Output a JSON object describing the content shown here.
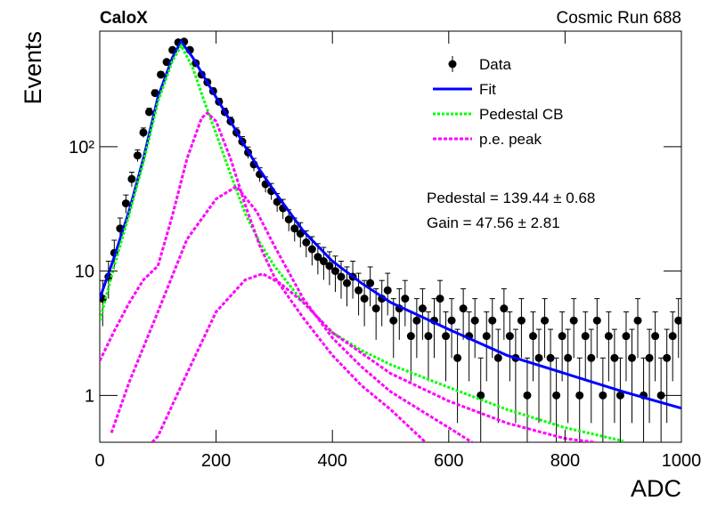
{
  "chart_data": {
    "type": "scatter",
    "title": "CaloX",
    "subtitle": "Cosmic Run 688",
    "x_label": "ADC",
    "y_label": "Events",
    "annotations": [
      "Pedestal = 139.44 ± 0.68",
      "Gain = 47.56 ± 2.81"
    ],
    "xlim": [
      0,
      1000
    ],
    "xticks": [
      0,
      200,
      400,
      600,
      800,
      1000
    ],
    "ylim": [
      0.42,
      850
    ],
    "yticks": [
      1,
      10,
      {
        "value": 100,
        "label": "10²"
      }
    ],
    "log_y": true,
    "grid": false,
    "legend": "upper right",
    "series": [
      {
        "name": "Data",
        "kind": "points",
        "color": "#000000",
        "x": [
          5,
          15,
          25,
          35,
          45,
          55,
          65,
          75,
          85,
          95,
          105,
          115,
          125,
          135,
          145,
          155,
          165,
          175,
          185,
          195,
          205,
          215,
          225,
          235,
          245,
          255,
          265,
          275,
          285,
          295,
          305,
          315,
          325,
          335,
          345,
          355,
          365,
          375,
          385,
          395,
          405,
          415,
          425,
          435,
          445,
          455,
          465,
          475,
          485,
          495,
          505,
          515,
          525,
          535,
          545,
          555,
          565,
          575,
          585,
          595,
          605,
          615,
          625,
          635,
          645,
          655,
          665,
          675,
          685,
          695,
          705,
          715,
          725,
          735,
          745,
          755,
          765,
          775,
          785,
          795,
          805,
          815,
          825,
          835,
          845,
          855,
          865,
          875,
          885,
          895,
          905,
          915,
          925,
          935,
          945,
          955,
          965,
          975,
          985,
          995
        ],
        "values": [
          6,
          9,
          14,
          22,
          35,
          55,
          85,
          130,
          190,
          270,
          380,
          480,
          600,
          690,
          700,
          600,
          470,
          380,
          330,
          280,
          230,
          190,
          160,
          130,
          110,
          90,
          72,
          60,
          50,
          44,
          36,
          32,
          26,
          22,
          20,
          17,
          15,
          13,
          12,
          11,
          10,
          9,
          8,
          9,
          7,
          6,
          8,
          5,
          6,
          7,
          4,
          5,
          6,
          3,
          4,
          5,
          3,
          4,
          6,
          3,
          4,
          2,
          5,
          3,
          4,
          1,
          3,
          4,
          2,
          5,
          3,
          2,
          4,
          1,
          3,
          2,
          4,
          2,
          1,
          3,
          2,
          4,
          1,
          3,
          2,
          4,
          1,
          3,
          2,
          1,
          3,
          2,
          4,
          1,
          2,
          3,
          1,
          2,
          3,
          4
        ],
        "errors": [
          2.4,
          3,
          3.7,
          4.7,
          5.9,
          7.4,
          9.2,
          11.4,
          13.8,
          16.4,
          19.5,
          21.9,
          24.5,
          26.3,
          26.5,
          24.5,
          21.7,
          19.5,
          18.2,
          16.7,
          15.2,
          13.8,
          12.6,
          11.4,
          10.5,
          9.5,
          8.5,
          7.7,
          7.1,
          6.6,
          6,
          5.7,
          5.1,
          4.7,
          4.5,
          4.1,
          3.9,
          3.6,
          3.5,
          3.3,
          3.2,
          3,
          2.8,
          3,
          2.6,
          2.4,
          2.8,
          2.2,
          2.4,
          2.6,
          2,
          2.2,
          2.4,
          1.7,
          2,
          2.2,
          1.7,
          2,
          2.4,
          1.7,
          2,
          1.4,
          2.2,
          1.7,
          2,
          1,
          1.7,
          2,
          1.4,
          2.2,
          1.7,
          1.4,
          2,
          1,
          1.7,
          1.4,
          2,
          1.4,
          1,
          1.7,
          1.4,
          2,
          1,
          1.7,
          1.4,
          2,
          1,
          1.7,
          1.4,
          1,
          1.7,
          1.4,
          2,
          1,
          1.4,
          1.7,
          1,
          1.4,
          1.7,
          2
        ]
      },
      {
        "name": "Fit",
        "kind": "line",
        "color": "#0000ff",
        "dash": "none",
        "curves": [
          {
            "x": [
              0,
              25,
              50,
              75,
              100,
              125,
              140,
              160,
              180,
              200,
              225,
              250,
              275,
              300,
              350,
              400,
              450,
              500,
              600,
              700,
              800,
              900,
              1000
            ],
            "values": [
              6,
              13,
              30,
              80,
              250,
              520,
              700,
              520,
              360,
              250,
              160,
              100,
              65,
              44,
              21,
              12,
              8,
              5.6,
              3.4,
              2.1,
              1.5,
              1.07,
              0.79
            ]
          }
        ]
      },
      {
        "name": "Pedestal CB",
        "kind": "line",
        "color": "#00ff00",
        "dash": "3 2",
        "curves": [
          {
            "x": [
              0,
              25,
              50,
              75,
              100,
              125,
              140,
              160,
              180,
              200,
              225,
              250,
              275,
              300,
              350,
              400,
              450,
              500,
              600,
              700,
              800,
              900
            ],
            "values": [
              4,
              11,
              28,
              75,
              230,
              490,
              650,
              430,
              230,
              128,
              60,
              29,
              17,
              11,
              5.6,
              3.2,
              2.3,
              1.77,
              1.16,
              0.77,
              0.55,
              0.43
            ]
          }
        ]
      },
      {
        "name": "p.e. peak",
        "kind": "line",
        "color": "#ff00ff",
        "dash": "4 2",
        "curves": [
          {
            "x": [
              0,
              25,
              50,
              75,
              100,
              125,
              150,
              175,
              185,
              200,
              225,
              250,
              275,
              300,
              350,
              400,
              450,
              500,
              560
            ],
            "values": [
              1.9,
              3.3,
              5.5,
              8.5,
              11,
              28,
              80,
              170,
              187,
              160,
              80,
              34,
              16,
              9,
              4.2,
              2.1,
              1.2,
              0.77,
              0.42
            ]
          },
          {
            "x": [
              20,
              50,
              100,
              150,
              200,
              235,
              270,
              300,
              350,
              400,
              450,
              500,
              600,
              640
            ],
            "values": [
              0.5,
              1.26,
              4.7,
              18,
              38,
              48,
              30,
              16,
              6,
              2.9,
              1.7,
              1.07,
              0.55,
              0.42
            ]
          },
          {
            "x": [
              90,
              100,
              150,
              200,
              250,
              280,
              310,
              350,
              400,
              500,
              600,
              700,
              800,
              850
            ],
            "values": [
              0.42,
              0.47,
              1.5,
              4.7,
              8.5,
              9.5,
              8,
              5.6,
              3.2,
              1.5,
              0.9,
              0.6,
              0.45,
              0.42
            ]
          }
        ]
      }
    ]
  }
}
